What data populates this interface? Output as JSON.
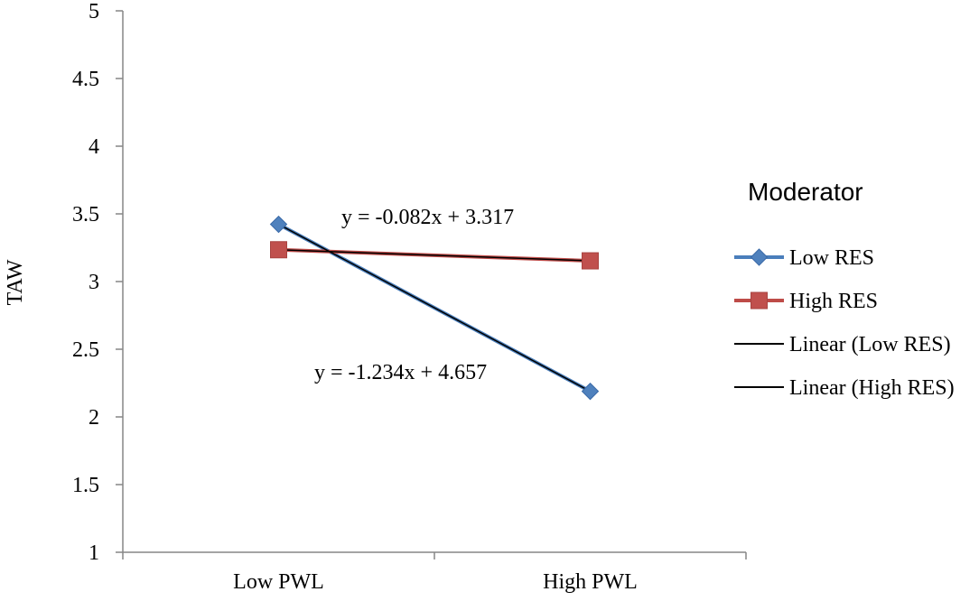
{
  "colors": {
    "low_res": "#4a7ebb",
    "low_res_marker": "#4f81bd",
    "high_res": "#be4b48",
    "high_res_marker": "#c0504d",
    "trendline": "#000000",
    "axis": "#868686"
  },
  "chart_data": {
    "type": "line",
    "ylabel": "TAW",
    "xlabel": "",
    "categories": [
      "Low PWL",
      "High PWL"
    ],
    "ylim": [
      1,
      5
    ],
    "yticks": [
      1,
      1.5,
      2,
      2.5,
      3,
      3.5,
      4,
      4.5,
      5
    ],
    "ytick_labels": [
      "1",
      "1.5",
      "2",
      "2.5",
      "3",
      "3.5",
      "4",
      "4.5",
      "5"
    ],
    "grid": false,
    "legend_position": "right",
    "legend_title": "Moderator",
    "series": [
      {
        "name": "Low RES",
        "values": [
          3.423,
          2.189
        ],
        "marker": "diamond",
        "color": "#4a7ebb"
      },
      {
        "name": "High RES",
        "values": [
          3.235,
          3.153
        ],
        "marker": "square",
        "color": "#be4b48"
      }
    ],
    "trendlines": [
      {
        "name": "Linear (Low RES)",
        "equation": "y = -1.234x + 4.657",
        "slope": -1.234,
        "intercept": 4.657
      },
      {
        "name": "Linear (High RES)",
        "equation": "y = -0.082x + 3.317",
        "slope": -0.082,
        "intercept": 3.317
      }
    ]
  }
}
